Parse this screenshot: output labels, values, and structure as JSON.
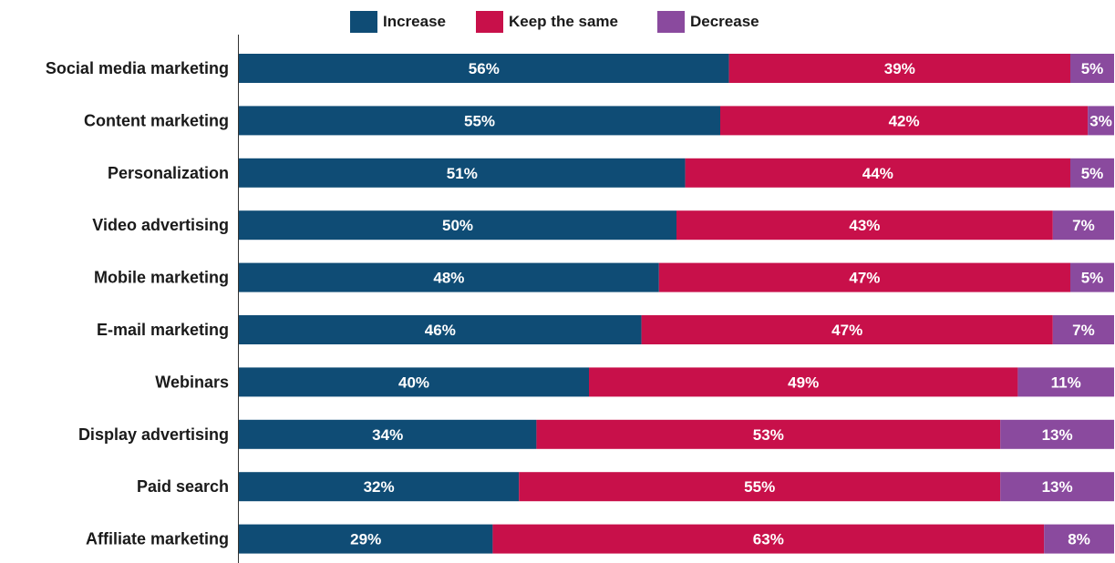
{
  "chart_data": {
    "type": "bar",
    "orientation": "horizontal",
    "stacked": true,
    "categories": [
      "Social media marketing",
      "Content marketing",
      "Personalization",
      "Video advertising",
      "Mobile marketing",
      "E-mail marketing",
      "Webinars",
      "Display advertising",
      "Paid search",
      "Affiliate marketing"
    ],
    "series": [
      {
        "name": "Increase",
        "color": "#0f4c75",
        "values": [
          56,
          55,
          51,
          50,
          48,
          46,
          40,
          34,
          32,
          29
        ]
      },
      {
        "name": "Keep the same",
        "color": "#c8104a",
        "values": [
          39,
          42,
          44,
          43,
          47,
          47,
          49,
          53,
          55,
          63
        ]
      },
      {
        "name": "Decrease",
        "color": "#8a4a9e",
        "values": [
          5,
          3,
          5,
          7,
          5,
          7,
          11,
          13,
          13,
          8
        ]
      }
    ],
    "value_suffix": "%",
    "xlim": [
      0,
      100
    ],
    "legend_position": "top-center",
    "grid": false
  }
}
